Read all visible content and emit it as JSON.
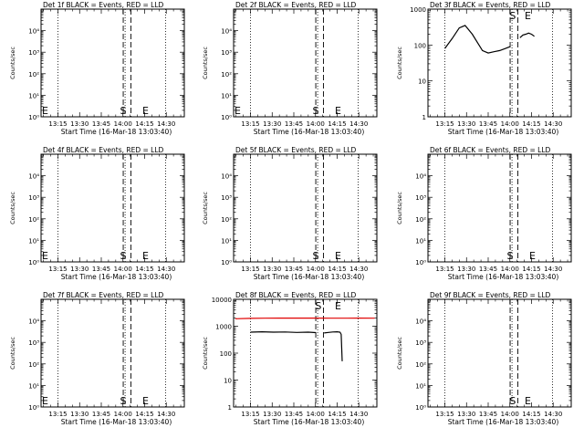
{
  "common": {
    "xlabel": "Start Time (16-Mar-18 13:03:40)",
    "ylabel": "Counts/sec",
    "x_ticks": [
      "13:15",
      "13:30",
      "13:45",
      "14:00",
      "14:15",
      "14:30"
    ],
    "x_tick_minutes": [
      0,
      15,
      30,
      45,
      60,
      75
    ],
    "x_range_minutes": [
      -11.7,
      87.5
    ],
    "dotted_minutes": [
      0,
      46.5,
      74.5
    ],
    "dashed_minutes": [
      45.2,
      50.5
    ],
    "marker_s": "S",
    "marker_e": "E",
    "colors": {
      "events": "#000000",
      "lld": "#e00000",
      "axis": "#000000"
    }
  },
  "chart_data": [
    {
      "type": "line",
      "title": "Det 1f BLACK = Events, RED = LLD",
      "scale": "log",
      "ylim": [
        1,
        100000
      ],
      "y_ticks": [
        {
          "v": 1,
          "label": "10⁰"
        },
        {
          "v": 10,
          "label": "10¹"
        },
        {
          "v": 100,
          "label": "10²"
        },
        {
          "v": 1000,
          "label": "10³"
        },
        {
          "v": 10000,
          "label": "10⁴"
        }
      ],
      "s_minute": 45.2,
      "e_minute": 60.6,
      "e_left": true,
      "series": []
    },
    {
      "type": "line",
      "title": "Det 2f BLACK = Events, RED = LLD",
      "scale": "log",
      "ylim": [
        1,
        100000
      ],
      "y_ticks": [
        {
          "v": 1,
          "label": "10⁰"
        },
        {
          "v": 10,
          "label": "10¹"
        },
        {
          "v": 100,
          "label": "10²"
        },
        {
          "v": 1000,
          "label": "10³"
        },
        {
          "v": 10000,
          "label": "10⁴"
        }
      ],
      "s_minute": 45.2,
      "e_minute": 60.6,
      "e_left": true,
      "series": []
    },
    {
      "type": "line",
      "title": "Det 3f BLACK = Events, RED = LLD",
      "scale": "log",
      "ylim": [
        1,
        1000
      ],
      "y_ticks": [
        {
          "v": 1,
          "label": "1"
        },
        {
          "v": 10,
          "label": "10"
        },
        {
          "v": 100,
          "label": "100"
        },
        {
          "v": 1000,
          "label": "1000"
        }
      ],
      "s_minute": 47.0,
      "e_minute": 57.5,
      "e_left": false,
      "series": [
        {
          "color": "events",
          "x": [
            0,
            5,
            10,
            14,
            19,
            23,
            26,
            30,
            34,
            38,
            42,
            45.2
          ],
          "y": [
            80,
            150,
            300,
            350,
            200,
            110,
            70,
            60,
            65,
            70,
            80,
            90
          ]
        },
        {
          "color": "events",
          "x": [
            52,
            54,
            56,
            58,
            60,
            62
          ],
          "y": [
            160,
            190,
            200,
            215,
            200,
            175
          ]
        }
      ]
    },
    {
      "type": "line",
      "title": "Det 4f BLACK = Events, RED = LLD",
      "scale": "log",
      "ylim": [
        1,
        100000
      ],
      "y_ticks": [
        {
          "v": 1,
          "label": "10⁰"
        },
        {
          "v": 10,
          "label": "10¹"
        },
        {
          "v": 100,
          "label": "10²"
        },
        {
          "v": 1000,
          "label": "10³"
        },
        {
          "v": 10000,
          "label": "10⁴"
        }
      ],
      "s_minute": 45.2,
      "e_minute": 60.6,
      "e_left": true,
      "series": []
    },
    {
      "type": "line",
      "title": "Det 5f BLACK = Events, RED = LLD",
      "scale": "log",
      "ylim": [
        1,
        100000
      ],
      "y_ticks": [
        {
          "v": 1,
          "label": "10⁰"
        },
        {
          "v": 10,
          "label": "10¹"
        },
        {
          "v": 100,
          "label": "10²"
        },
        {
          "v": 1000,
          "label": "10³"
        },
        {
          "v": 10000,
          "label": "10⁴"
        }
      ],
      "s_minute": 45.2,
      "e_minute": 60.6,
      "e_left": false,
      "series": []
    },
    {
      "type": "line",
      "title": "Det 6f BLACK = Events, RED = LLD",
      "scale": "log",
      "ylim": [
        1,
        100000
      ],
      "y_ticks": [
        {
          "v": 1,
          "label": "10⁰"
        },
        {
          "v": 10,
          "label": "10¹"
        },
        {
          "v": 100,
          "label": "10²"
        },
        {
          "v": 1000,
          "label": "10³"
        },
        {
          "v": 10000,
          "label": "10⁴"
        }
      ],
      "s_minute": 45.2,
      "e_minute": 60.6,
      "e_left": false,
      "series": []
    },
    {
      "type": "line",
      "title": "Det 7f BLACK = Events, RED = LLD",
      "scale": "log",
      "ylim": [
        1,
        100000
      ],
      "y_ticks": [
        {
          "v": 1,
          "label": "10⁰"
        },
        {
          "v": 10,
          "label": "10¹"
        },
        {
          "v": 100,
          "label": "10²"
        },
        {
          "v": 1000,
          "label": "10³"
        },
        {
          "v": 10000,
          "label": "10⁴"
        }
      ],
      "s_minute": 45.2,
      "e_minute": 60.6,
      "e_left": true,
      "series": []
    },
    {
      "type": "line",
      "title": "Det 8f BLACK = Events, RED = LLD",
      "scale": "log",
      "ylim": [
        1,
        10000
      ],
      "y_ticks": [
        {
          "v": 1,
          "label": "1"
        },
        {
          "v": 10,
          "label": "10"
        },
        {
          "v": 100,
          "label": "100"
        },
        {
          "v": 1000,
          "label": "1000"
        },
        {
          "v": 10000,
          "label": "10000"
        }
      ],
      "s_minute": 47.0,
      "e_minute": 60.6,
      "e_left": false,
      "series": [
        {
          "color": "lld",
          "x": [
            -10.5,
            0,
            10,
            20,
            30,
            40,
            45.2,
            55,
            65,
            75,
            86
          ],
          "y": [
            1900,
            1950,
            1980,
            2000,
            2000,
            2010,
            2000,
            1980,
            1990,
            2000,
            1990
          ]
        },
        {
          "color": "events",
          "x": [
            0,
            8,
            16,
            24,
            32,
            40,
            45.2
          ],
          "y": [
            600,
            620,
            600,
            610,
            590,
            600,
            580
          ]
        },
        {
          "color": "events",
          "x": [
            51,
            54,
            57,
            60,
            62,
            62,
            62.8,
            63.5
          ],
          "y": [
            560,
            590,
            610,
            620,
            600,
            600,
            500,
            50
          ]
        }
      ]
    },
    {
      "type": "line",
      "title": "Det 9f BLACK = Events, RED = LLD",
      "scale": "log",
      "ylim": [
        1,
        100000
      ],
      "y_ticks": [
        {
          "v": 1,
          "label": "10⁰"
        },
        {
          "v": 10,
          "label": "10¹"
        },
        {
          "v": 100,
          "label": "10²"
        },
        {
          "v": 1000,
          "label": "10³"
        },
        {
          "v": 10000,
          "label": "10⁴"
        }
      ],
      "s_minute": 47.0,
      "e_minute": 57.5,
      "e_left": false,
      "series": []
    }
  ]
}
